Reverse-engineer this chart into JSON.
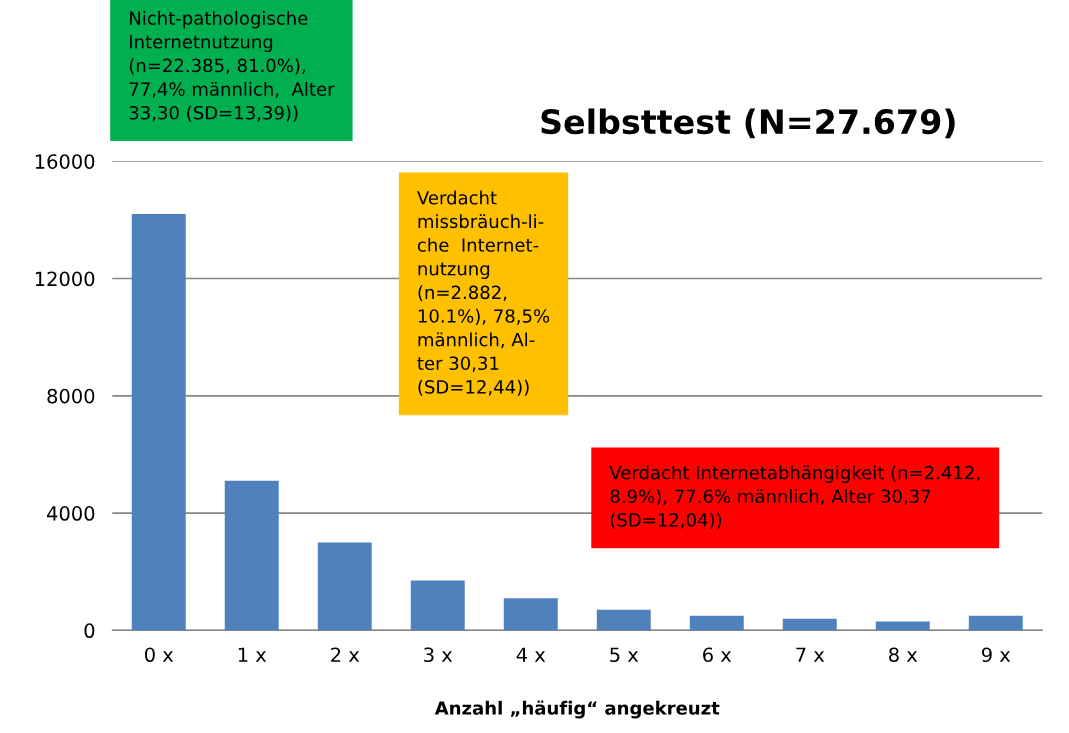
{
  "chart_data": {
    "type": "bar",
    "title": "Selbsttest (N=27.679)",
    "xlabel": "Anzahl „häufig“ angekreuzt",
    "categories": [
      "0 x",
      "1 x",
      "2 x",
      "3 x",
      "4 x",
      "5 x",
      "6 x",
      "7 x",
      "8 x",
      "9 x"
    ],
    "values": [
      14200,
      5100,
      3000,
      1700,
      1100,
      700,
      500,
      400,
      300,
      500
    ],
    "color": "#4f81bd",
    "ylim": [
      0,
      16000
    ],
    "yticks": [
      0,
      4000,
      8000,
      12000,
      16000
    ],
    "grid": "y",
    "legend": false,
    "annotations": [
      "Nicht-pathologische\nInternetnutzung\n(n=22.385, 81.0%),\n77,4% männlich,  Alter\n33,30 (SD=13,39))",
      "Verdacht\nmissbräuch-li-\nche  Internet-\nnutzung\n(n=2.882,\n10.1%), 78,5%\nmännlich, Al-\nter 30,31\n(SD=12,44))",
      "Verdacht Internetabhängigkeit (n=2.412,\n8.9%), 77.6% männlich, Alter 30,37\n(SD=12,04))"
    ]
  }
}
